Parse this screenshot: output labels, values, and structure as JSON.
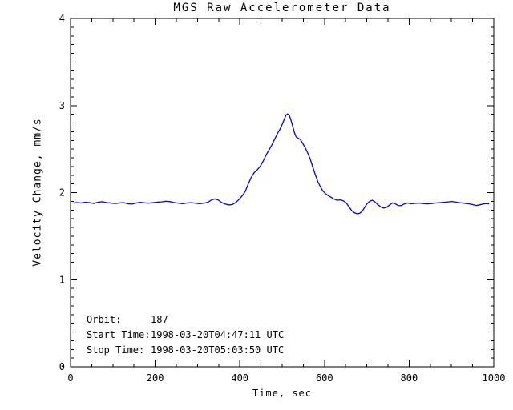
{
  "chart_data": {
    "type": "line",
    "title": "MGS Raw Accelerometer Data",
    "xlabel": "Time, sec",
    "ylabel": "Velocity Change, mm/s",
    "xlim": [
      0,
      1000
    ],
    "ylim": [
      0,
      4
    ],
    "xticks": {
      "values": [
        0,
        200,
        400,
        600,
        800,
        1000
      ],
      "labels": [
        "0",
        "200",
        "400",
        "600",
        "800",
        "1000"
      ],
      "minor_step": 50
    },
    "yticks": {
      "values": [
        0,
        1,
        2,
        3,
        4
      ],
      "labels": [
        "0",
        "1",
        "2",
        "3",
        "4"
      ],
      "minor_step": 0.1
    },
    "grid": false,
    "frame": true,
    "legend": "none",
    "axis_color": "#000000",
    "line_color": "#0000f0",
    "series": [
      {
        "name": "velocity_change_mm_s",
        "points": [
          [
            6,
            1.88
          ],
          [
            15,
            1.885
          ],
          [
            25,
            1.88
          ],
          [
            35,
            1.89
          ],
          [
            45,
            1.885
          ],
          [
            55,
            1.875
          ],
          [
            65,
            1.89
          ],
          [
            75,
            1.895
          ],
          [
            85,
            1.885
          ],
          [
            95,
            1.88
          ],
          [
            105,
            1.875
          ],
          [
            115,
            1.88
          ],
          [
            125,
            1.885
          ],
          [
            135,
            1.872
          ],
          [
            145,
            1.868
          ],
          [
            155,
            1.88
          ],
          [
            165,
            1.888
          ],
          [
            175,
            1.882
          ],
          [
            185,
            1.878
          ],
          [
            195,
            1.885
          ],
          [
            205,
            1.89
          ],
          [
            215,
            1.893
          ],
          [
            225,
            1.9
          ],
          [
            235,
            1.896
          ],
          [
            245,
            1.885
          ],
          [
            255,
            1.878
          ],
          [
            265,
            1.873
          ],
          [
            275,
            1.88
          ],
          [
            285,
            1.884
          ],
          [
            295,
            1.878
          ],
          [
            305,
            1.873
          ],
          [
            315,
            1.878
          ],
          [
            325,
            1.89
          ],
          [
            333,
            1.915
          ],
          [
            341,
            1.928
          ],
          [
            349,
            1.915
          ],
          [
            357,
            1.886
          ],
          [
            366,
            1.868
          ],
          [
            374,
            1.858
          ],
          [
            382,
            1.862
          ],
          [
            390,
            1.885
          ],
          [
            398,
            1.92
          ],
          [
            406,
            1.965
          ],
          [
            413,
            2.015
          ],
          [
            420,
            2.1
          ],
          [
            427,
            2.175
          ],
          [
            434,
            2.23
          ],
          [
            441,
            2.26
          ],
          [
            448,
            2.3
          ],
          [
            455,
            2.36
          ],
          [
            462,
            2.43
          ],
          [
            469,
            2.49
          ],
          [
            476,
            2.55
          ],
          [
            483,
            2.62
          ],
          [
            489,
            2.68
          ],
          [
            494,
            2.72
          ],
          [
            499,
            2.77
          ],
          [
            504,
            2.83
          ],
          [
            509,
            2.89
          ],
          [
            513,
            2.905
          ],
          [
            517,
            2.885
          ],
          [
            521,
            2.83
          ],
          [
            525,
            2.76
          ],
          [
            529,
            2.69
          ],
          [
            533,
            2.64
          ],
          [
            538,
            2.625
          ],
          [
            543,
            2.61
          ],
          [
            548,
            2.57
          ],
          [
            554,
            2.52
          ],
          [
            560,
            2.46
          ],
          [
            566,
            2.39
          ],
          [
            572,
            2.3
          ],
          [
            578,
            2.21
          ],
          [
            584,
            2.13
          ],
          [
            590,
            2.07
          ],
          [
            596,
            2.02
          ],
          [
            602,
            1.99
          ],
          [
            609,
            1.965
          ],
          [
            616,
            1.945
          ],
          [
            623,
            1.925
          ],
          [
            630,
            1.912
          ],
          [
            638,
            1.916
          ],
          [
            645,
            1.905
          ],
          [
            652,
            1.878
          ],
          [
            659,
            1.828
          ],
          [
            665,
            1.79
          ],
          [
            671,
            1.768
          ],
          [
            677,
            1.757
          ],
          [
            683,
            1.762
          ],
          [
            689,
            1.785
          ],
          [
            695,
            1.83
          ],
          [
            701,
            1.875
          ],
          [
            707,
            1.9
          ],
          [
            713,
            1.912
          ],
          [
            719,
            1.895
          ],
          [
            726,
            1.862
          ],
          [
            733,
            1.835
          ],
          [
            740,
            1.822
          ],
          [
            747,
            1.832
          ],
          [
            754,
            1.858
          ],
          [
            761,
            1.882
          ],
          [
            767,
            1.872
          ],
          [
            774,
            1.852
          ],
          [
            781,
            1.85
          ],
          [
            788,
            1.868
          ],
          [
            796,
            1.88
          ],
          [
            804,
            1.872
          ],
          [
            812,
            1.875
          ],
          [
            822,
            1.88
          ],
          [
            832,
            1.875
          ],
          [
            842,
            1.87
          ],
          [
            852,
            1.874
          ],
          [
            862,
            1.88
          ],
          [
            872,
            1.884
          ],
          [
            882,
            1.888
          ],
          [
            892,
            1.893
          ],
          [
            902,
            1.898
          ],
          [
            912,
            1.89
          ],
          [
            922,
            1.882
          ],
          [
            932,
            1.876
          ],
          [
            942,
            1.87
          ],
          [
            950,
            1.862
          ],
          [
            958,
            1.852
          ],
          [
            966,
            1.858
          ],
          [
            974,
            1.868
          ],
          [
            981,
            1.874
          ],
          [
            988,
            1.87
          ]
        ]
      }
    ],
    "annotations": [
      {
        "label": "Orbit:",
        "value": "187"
      },
      {
        "label": "Start Time:",
        "value": "1998-03-20T04:47:11 UTC"
      },
      {
        "label": "Stop Time:",
        "value": "1998-03-20T05:03:50 UTC"
      }
    ]
  }
}
